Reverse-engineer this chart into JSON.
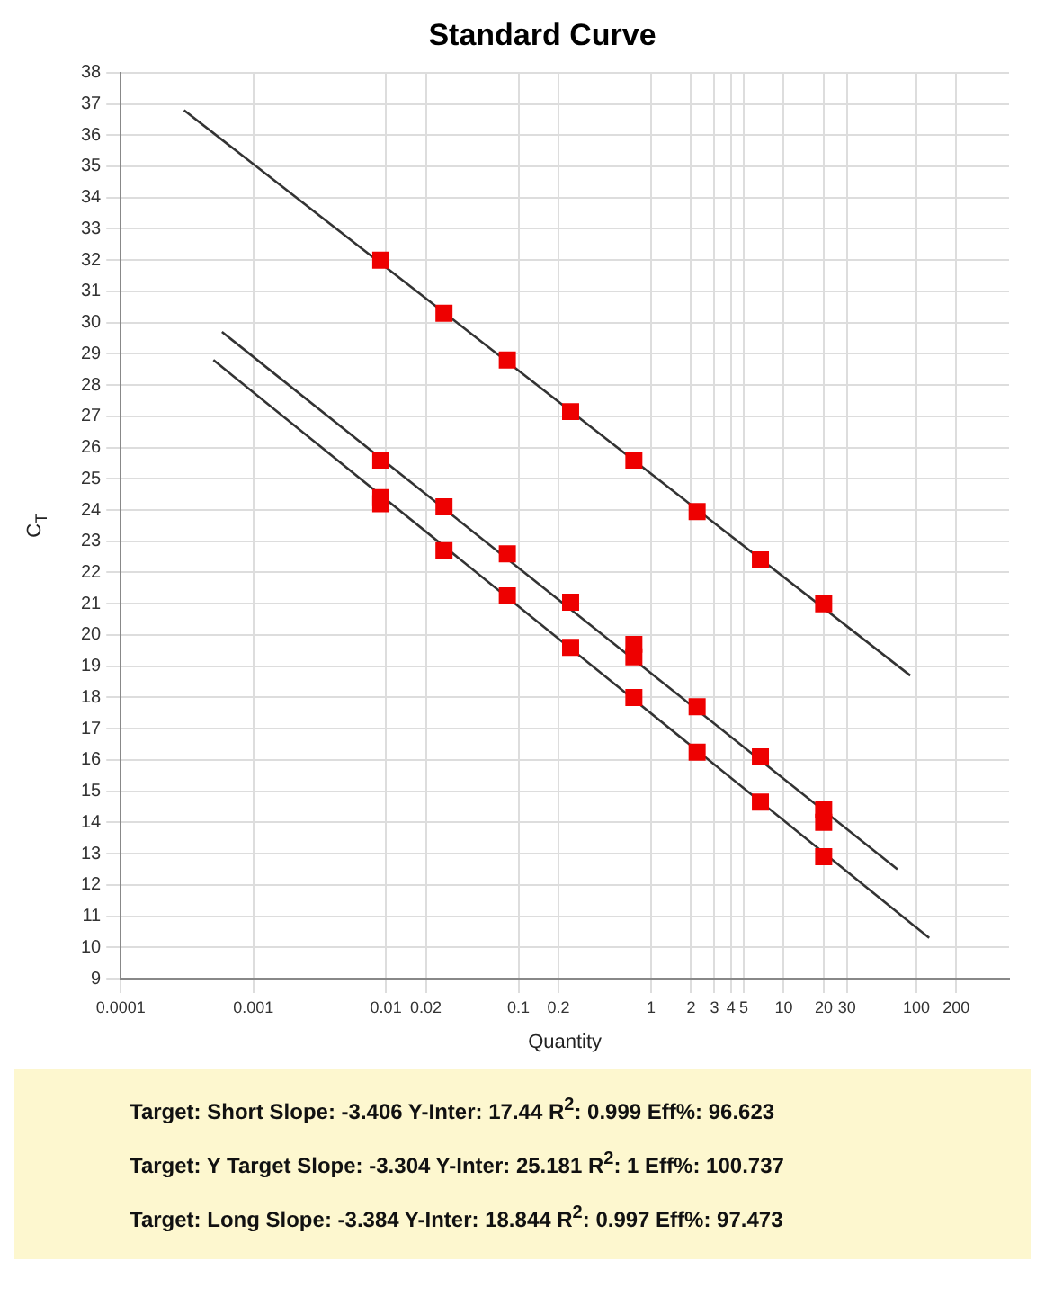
{
  "chart_data": {
    "type": "scatter",
    "title": "Standard Curve",
    "xlabel": "Quantity",
    "ylabel": "C$_{T}$",
    "log": "x",
    "grid": true,
    "xlim": [
      0.0001,
      500
    ],
    "ylim": [
      9,
      38
    ],
    "xticks": [
      0.0001,
      0.001,
      0.01,
      0.02,
      0.1,
      0.2,
      1,
      2,
      3,
      4,
      5,
      10,
      20,
      30,
      100,
      200
    ],
    "yticks": [
      9,
      10,
      11,
      12,
      13,
      14,
      15,
      16,
      17,
      18,
      19,
      20,
      21,
      22,
      23,
      24,
      25,
      26,
      27,
      28,
      29,
      30,
      31,
      32,
      33,
      34,
      35,
      36,
      37,
      38
    ],
    "series": [
      {
        "type": "line",
        "color": "#333333",
        "marker": "none",
        "x": [
          0.0003,
          90
        ],
        "values": [
          36.8,
          18.7
        ]
      },
      {
        "type": "line",
        "color": "#333333",
        "marker": "none",
        "x": [
          0.00058,
          72
        ],
        "values": [
          29.7,
          12.5
        ]
      },
      {
        "type": "line",
        "color": "#333333",
        "marker": "none",
        "x": [
          0.0005,
          125
        ],
        "values": [
          28.8,
          10.3
        ]
      },
      {
        "type": "scatter",
        "color": "#ee0000",
        "marker": "square",
        "x": [
          0.00914,
          0.0274,
          0.0823,
          0.247,
          0.741,
          2.222,
          6.667,
          20
        ],
        "values": [
          32.0,
          30.3,
          28.8,
          27.15,
          25.6,
          23.95,
          22.4,
          21.0
        ]
      },
      {
        "type": "scatter",
        "color": "#ee0000",
        "marker": "square",
        "x": [
          0.00914,
          0.0274,
          0.0823,
          0.247,
          0.741,
          0.741,
          2.222,
          6.667,
          20,
          20
        ],
        "values": [
          25.6,
          24.1,
          22.6,
          21.05,
          19.7,
          19.3,
          17.7,
          16.1,
          14.4,
          14.0
        ]
      },
      {
        "type": "scatter",
        "color": "#ee0000",
        "marker": "square",
        "x": [
          0.00914,
          0.00914,
          0.0274,
          0.0823,
          0.247,
          0.741,
          2.222,
          6.667,
          20
        ],
        "values": [
          24.4,
          24.2,
          22.7,
          21.25,
          19.6,
          18.0,
          16.25,
          14.65,
          12.9
        ]
      }
    ],
    "annotations": [
      "Target: Short Slope: -3.406 Y-Inter: 17.44 R$^{2}$: 0.999 Eff%: 96.623",
      "Target: Y Target Slope: -3.304 Y-Inter: 25.181 R$^{2}$: 1 Eff%: 100.737",
      "Target: Long Slope: -3.384 Y-Inter: 18.844 R$^{2}$: 0.997 Eff%: 97.473"
    ]
  }
}
